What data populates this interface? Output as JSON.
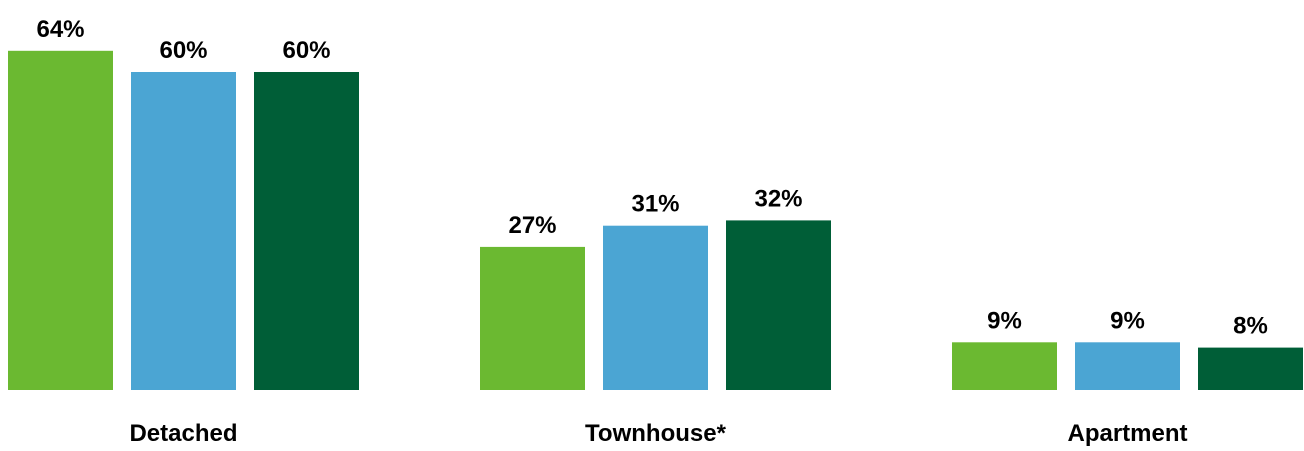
{
  "chart_data": {
    "type": "bar",
    "categories": [
      "Detached",
      "Townhouse*",
      "Apartment"
    ],
    "series": [
      {
        "values": [
          64,
          27,
          9
        ],
        "color": "#6bb931"
      },
      {
        "values": [
          60,
          31,
          9
        ],
        "color": "#4ba5d3"
      },
      {
        "values": [
          60,
          32,
          8
        ],
        "color": "#005e37"
      }
    ],
    "data_labels": [
      [
        "64%",
        "27%",
        "9%"
      ],
      [
        "60%",
        "31%",
        "9%"
      ],
      [
        "60%",
        "32%",
        "8%"
      ]
    ],
    "value_suffix": "%",
    "ylim": [
      0,
      64
    ],
    "grid": false,
    "legend": "none"
  }
}
